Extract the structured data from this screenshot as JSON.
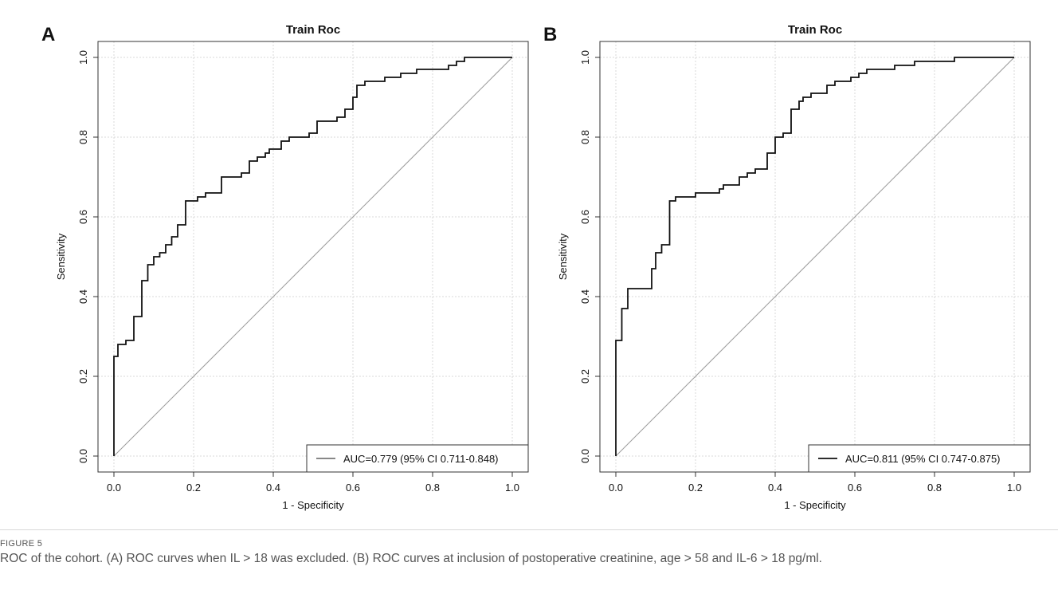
{
  "panels": [
    {
      "letter": "A",
      "chart_data": {
        "type": "line",
        "title": "Train Roc",
        "xlabel": "1 - Specificity",
        "ylabel": "Sensitivity",
        "xlim": [
          0,
          1
        ],
        "ylim": [
          0,
          1
        ],
        "x_ticks": [
          "0.0",
          "0.2",
          "0.4",
          "0.6",
          "0.8",
          "1.0"
        ],
        "y_ticks": [
          "0.0",
          "0.2",
          "0.4",
          "0.6",
          "0.8",
          "1.0"
        ],
        "grid": true,
        "legend_position": "bottom-right",
        "legend": [
          "AUC=0.779 (95% CI 0.711-0.848)"
        ],
        "series": [
          {
            "name": "AUC=0.779 (95% CI 0.711-0.848)",
            "points": [
              [
                0,
                0
              ],
              [
                0,
                0.25
              ],
              [
                0.01,
                0.25
              ],
              [
                0.01,
                0.28
              ],
              [
                0.03,
                0.28
              ],
              [
                0.03,
                0.29
              ],
              [
                0.05,
                0.29
              ],
              [
                0.05,
                0.35
              ],
              [
                0.07,
                0.35
              ],
              [
                0.07,
                0.44
              ],
              [
                0.085,
                0.44
              ],
              [
                0.085,
                0.48
              ],
              [
                0.1,
                0.48
              ],
              [
                0.1,
                0.5
              ],
              [
                0.115,
                0.5
              ],
              [
                0.115,
                0.51
              ],
              [
                0.13,
                0.51
              ],
              [
                0.13,
                0.53
              ],
              [
                0.145,
                0.53
              ],
              [
                0.145,
                0.55
              ],
              [
                0.16,
                0.55
              ],
              [
                0.16,
                0.58
              ],
              [
                0.18,
                0.58
              ],
              [
                0.18,
                0.64
              ],
              [
                0.21,
                0.64
              ],
              [
                0.21,
                0.65
              ],
              [
                0.23,
                0.65
              ],
              [
                0.23,
                0.66
              ],
              [
                0.27,
                0.66
              ],
              [
                0.27,
                0.7
              ],
              [
                0.32,
                0.7
              ],
              [
                0.32,
                0.71
              ],
              [
                0.34,
                0.71
              ],
              [
                0.34,
                0.74
              ],
              [
                0.36,
                0.74
              ],
              [
                0.36,
                0.75
              ],
              [
                0.38,
                0.75
              ],
              [
                0.38,
                0.76
              ],
              [
                0.39,
                0.76
              ],
              [
                0.39,
                0.77
              ],
              [
                0.42,
                0.77
              ],
              [
                0.42,
                0.79
              ],
              [
                0.44,
                0.79
              ],
              [
                0.44,
                0.8
              ],
              [
                0.49,
                0.8
              ],
              [
                0.49,
                0.81
              ],
              [
                0.51,
                0.81
              ],
              [
                0.51,
                0.84
              ],
              [
                0.56,
                0.84
              ],
              [
                0.56,
                0.85
              ],
              [
                0.58,
                0.85
              ],
              [
                0.58,
                0.87
              ],
              [
                0.6,
                0.87
              ],
              [
                0.6,
                0.9
              ],
              [
                0.61,
                0.9
              ],
              [
                0.61,
                0.93
              ],
              [
                0.63,
                0.93
              ],
              [
                0.63,
                0.94
              ],
              [
                0.68,
                0.94
              ],
              [
                0.68,
                0.95
              ],
              [
                0.72,
                0.95
              ],
              [
                0.72,
                0.96
              ],
              [
                0.76,
                0.96
              ],
              [
                0.76,
                0.97
              ],
              [
                0.84,
                0.97
              ],
              [
                0.84,
                0.98
              ],
              [
                0.86,
                0.98
              ],
              [
                0.86,
                0.99
              ],
              [
                0.88,
                0.99
              ],
              [
                0.88,
                1.0
              ],
              [
                1.0,
                1.0
              ]
            ]
          }
        ]
      }
    },
    {
      "letter": "B",
      "chart_data": {
        "type": "line",
        "title": "Train Roc",
        "xlabel": "1 - Specificity",
        "ylabel": "Sensitivity",
        "xlim": [
          0,
          1
        ],
        "ylim": [
          0,
          1
        ],
        "x_ticks": [
          "0.0",
          "0.2",
          "0.4",
          "0.6",
          "0.8",
          "1.0"
        ],
        "y_ticks": [
          "0.0",
          "0.2",
          "0.4",
          "0.6",
          "0.8",
          "1.0"
        ],
        "grid": true,
        "legend_position": "bottom-right",
        "legend": [
          "AUC=0.811 (95% CI 0.747-0.875)"
        ],
        "series": [
          {
            "name": "AUC=0.811 (95% CI 0.747-0.875)",
            "points": [
              [
                0,
                0
              ],
              [
                0,
                0.29
              ],
              [
                0.015,
                0.29
              ],
              [
                0.015,
                0.37
              ],
              [
                0.03,
                0.37
              ],
              [
                0.03,
                0.42
              ],
              [
                0.09,
                0.42
              ],
              [
                0.09,
                0.47
              ],
              [
                0.1,
                0.47
              ],
              [
                0.1,
                0.51
              ],
              [
                0.115,
                0.51
              ],
              [
                0.115,
                0.53
              ],
              [
                0.135,
                0.53
              ],
              [
                0.135,
                0.64
              ],
              [
                0.15,
                0.64
              ],
              [
                0.15,
                0.65
              ],
              [
                0.2,
                0.65
              ],
              [
                0.2,
                0.66
              ],
              [
                0.26,
                0.66
              ],
              [
                0.26,
                0.67
              ],
              [
                0.27,
                0.67
              ],
              [
                0.27,
                0.68
              ],
              [
                0.31,
                0.68
              ],
              [
                0.31,
                0.7
              ],
              [
                0.33,
                0.7
              ],
              [
                0.33,
                0.71
              ],
              [
                0.35,
                0.71
              ],
              [
                0.35,
                0.72
              ],
              [
                0.38,
                0.72
              ],
              [
                0.38,
                0.76
              ],
              [
                0.4,
                0.76
              ],
              [
                0.4,
                0.8
              ],
              [
                0.42,
                0.8
              ],
              [
                0.42,
                0.81
              ],
              [
                0.44,
                0.81
              ],
              [
                0.44,
                0.87
              ],
              [
                0.46,
                0.87
              ],
              [
                0.46,
                0.89
              ],
              [
                0.47,
                0.89
              ],
              [
                0.47,
                0.9
              ],
              [
                0.49,
                0.9
              ],
              [
                0.49,
                0.91
              ],
              [
                0.53,
                0.91
              ],
              [
                0.53,
                0.93
              ],
              [
                0.55,
                0.93
              ],
              [
                0.55,
                0.94
              ],
              [
                0.59,
                0.94
              ],
              [
                0.59,
                0.95
              ],
              [
                0.61,
                0.95
              ],
              [
                0.61,
                0.96
              ],
              [
                0.63,
                0.96
              ],
              [
                0.63,
                0.97
              ],
              [
                0.7,
                0.97
              ],
              [
                0.7,
                0.98
              ],
              [
                0.75,
                0.98
              ],
              [
                0.75,
                0.99
              ],
              [
                0.85,
                0.99
              ],
              [
                0.85,
                1.0
              ],
              [
                1.0,
                1.0
              ]
            ]
          }
        ]
      }
    }
  ],
  "caption": {
    "figure_label": "FIGURE 5",
    "text": "ROC of the cohort. (A) ROC curves when IL > 18 was excluded. (B) ROC curves at inclusion of postoperative creatinine, age > 58 and IL-6 > 18 pg/ml."
  },
  "colors": {
    "curve": "#111111",
    "diagonal": "#9a9a9a",
    "grid": "#d9d9d9",
    "axis": "#333333"
  }
}
